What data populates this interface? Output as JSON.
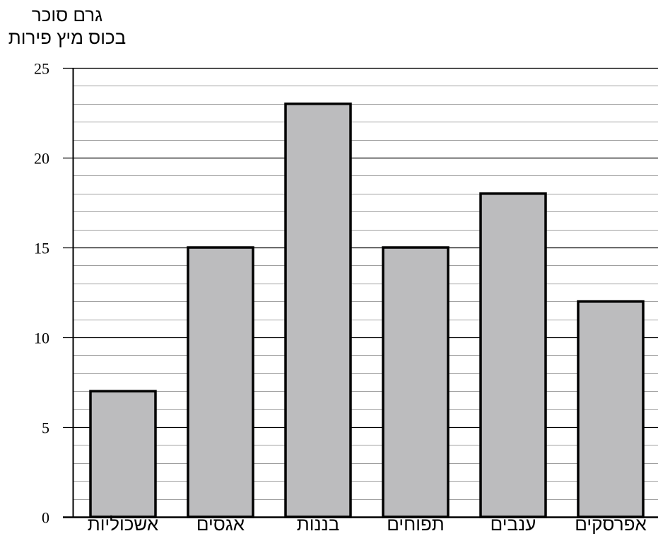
{
  "chart_data": {
    "type": "bar",
    "ylabel_lines": [
      "גרם סוכר",
      "בכוס מיץ פירות"
    ],
    "categories": [
      "אשכוליות",
      "אגסים",
      "בננות",
      "תפוחים",
      "ענבים",
      "אפרסקים"
    ],
    "values": [
      7,
      15,
      23,
      15,
      18,
      12
    ],
    "ylim": [
      0,
      25
    ],
    "yticks": [
      0,
      5,
      10,
      15,
      20,
      25
    ],
    "minor_step": 1,
    "grid": true,
    "colors": {
      "bar_fill": "#bcbcbe",
      "bar_stroke": "#000000",
      "major_grid": "#000000",
      "minor_grid": "#a0a0a0"
    }
  }
}
